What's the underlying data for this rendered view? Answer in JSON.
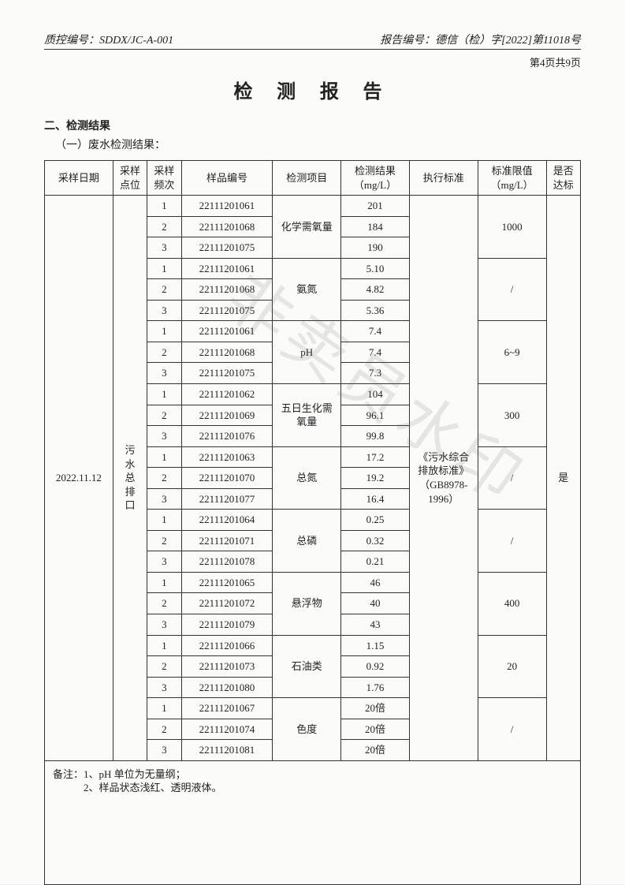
{
  "header": {
    "qc_label": "质控编号：",
    "qc_code": "SDDX/JC-A-001",
    "report_label": "报告编号：",
    "report_code": "德信（检）字[2022]第11018号",
    "page_info": "第4页共9页"
  },
  "title": "检 测 报 告",
  "section_heading": "二、检测结果",
  "sub_heading": "（一）废水检测结果：",
  "watermark": "非卖员水印",
  "table": {
    "columns": [
      "采样日期",
      "采样点位",
      "采样频次",
      "样品编号",
      "检测项目",
      "检测结果（mg/L）",
      "执行标准",
      "标准限值（mg/L）",
      "是否达标"
    ],
    "sampling_date": "2022.11.12",
    "sampling_point": "污水总排口",
    "standard": "《污水综合排放标准》（GB8978-1996）",
    "compliant": "是",
    "groups": [
      {
        "item": "化学需氧量",
        "limit": "1000",
        "rows": [
          {
            "freq": "1",
            "code": "22111201061",
            "result": "201"
          },
          {
            "freq": "2",
            "code": "22111201068",
            "result": "184"
          },
          {
            "freq": "3",
            "code": "22111201075",
            "result": "190"
          }
        ]
      },
      {
        "item": "氨氮",
        "limit": "/",
        "rows": [
          {
            "freq": "1",
            "code": "22111201061",
            "result": "5.10"
          },
          {
            "freq": "2",
            "code": "22111201068",
            "result": "4.82"
          },
          {
            "freq": "3",
            "code": "22111201075",
            "result": "5.36"
          }
        ]
      },
      {
        "item": "pH",
        "limit": "6~9",
        "rows": [
          {
            "freq": "1",
            "code": "22111201061",
            "result": "7.4"
          },
          {
            "freq": "2",
            "code": "22111201068",
            "result": "7.4"
          },
          {
            "freq": "3",
            "code": "22111201075",
            "result": "7.3"
          }
        ]
      },
      {
        "item": "五日生化需氧量",
        "limit": "300",
        "rows": [
          {
            "freq": "1",
            "code": "22111201062",
            "result": "104"
          },
          {
            "freq": "2",
            "code": "22111201069",
            "result": "96.1"
          },
          {
            "freq": "3",
            "code": "22111201076",
            "result": "99.8"
          }
        ]
      },
      {
        "item": "总氮",
        "limit": "/",
        "rows": [
          {
            "freq": "1",
            "code": "22111201063",
            "result": "17.2"
          },
          {
            "freq": "2",
            "code": "22111201070",
            "result": "19.2"
          },
          {
            "freq": "3",
            "code": "22111201077",
            "result": "16.4"
          }
        ]
      },
      {
        "item": "总磷",
        "limit": "/",
        "rows": [
          {
            "freq": "1",
            "code": "22111201064",
            "result": "0.25"
          },
          {
            "freq": "2",
            "code": "22111201071",
            "result": "0.32"
          },
          {
            "freq": "3",
            "code": "22111201078",
            "result": "0.21"
          }
        ]
      },
      {
        "item": "悬浮物",
        "limit": "400",
        "rows": [
          {
            "freq": "1",
            "code": "22111201065",
            "result": "46"
          },
          {
            "freq": "2",
            "code": "22111201072",
            "result": "40"
          },
          {
            "freq": "3",
            "code": "22111201079",
            "result": "43"
          }
        ]
      },
      {
        "item": "石油类",
        "limit": "20",
        "rows": [
          {
            "freq": "1",
            "code": "22111201066",
            "result": "1.15"
          },
          {
            "freq": "2",
            "code": "22111201073",
            "result": "0.92"
          },
          {
            "freq": "3",
            "code": "22111201080",
            "result": "1.76"
          }
        ]
      },
      {
        "item": "色度",
        "limit": "/",
        "rows": [
          {
            "freq": "1",
            "code": "22111201067",
            "result": "20倍"
          },
          {
            "freq": "2",
            "code": "22111201074",
            "result": "20倍"
          },
          {
            "freq": "3",
            "code": "22111201081",
            "result": "20倍"
          }
        ]
      }
    ],
    "notes": "备注：1、pH 单位为无量纲；\n　　　2、样品状态浅红、透明液体。"
  },
  "style": {
    "page_bg": "#fbfbf9",
    "border_color": "#333333",
    "text_color": "#222222",
    "font_size_body": 13,
    "font_size_title": 24,
    "col_widths_pct": [
      12,
      6,
      6,
      16,
      12,
      12,
      12,
      12,
      6
    ]
  }
}
